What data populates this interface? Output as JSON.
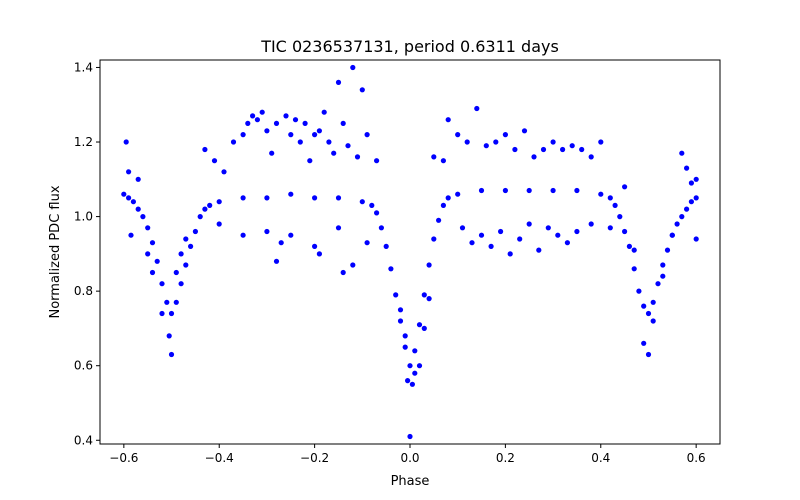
{
  "chart_data": {
    "type": "scatter",
    "title": "TIC 0236537131, period 0.6311 days",
    "xlabel": "Phase",
    "ylabel": "Normalized PDC flux",
    "xlim": [
      -0.65,
      0.65
    ],
    "ylim": [
      0.39,
      1.42
    ],
    "xticks": [
      -0.6,
      -0.4,
      -0.2,
      0.0,
      0.2,
      0.4,
      0.6
    ],
    "xtick_labels": [
      "−0.6",
      "−0.4",
      "−0.2",
      "0.0",
      "0.2",
      "0.4",
      "0.6"
    ],
    "yticks": [
      0.4,
      0.6,
      0.8,
      1.0,
      1.2,
      1.4
    ],
    "ytick_labels": [
      "0.4",
      "0.6",
      "0.8",
      "1.0",
      "1.2",
      "1.4"
    ],
    "grid": false,
    "marker_color": "#0000ff",
    "series": [
      {
        "points": [
          [
            -0.6,
            1.06
          ],
          [
            -0.59,
            1.05
          ],
          [
            -0.58,
            1.04
          ],
          [
            -0.57,
            1.02
          ],
          [
            -0.56,
            1.0
          ],
          [
            -0.55,
            0.97
          ],
          [
            -0.54,
            0.93
          ],
          [
            -0.53,
            0.88
          ],
          [
            -0.52,
            0.82
          ],
          [
            -0.51,
            0.77
          ],
          [
            -0.5,
            0.74
          ],
          [
            -0.49,
            0.77
          ],
          [
            -0.48,
            0.82
          ],
          [
            -0.47,
            0.87
          ],
          [
            -0.46,
            0.92
          ],
          [
            -0.45,
            0.96
          ],
          [
            -0.44,
            1.0
          ],
          [
            -0.43,
            1.02
          ],
          [
            -0.42,
            1.03
          ],
          [
            -0.4,
            1.04
          ],
          [
            -0.35,
            1.05
          ],
          [
            -0.3,
            1.05
          ],
          [
            -0.25,
            1.06
          ],
          [
            -0.2,
            1.05
          ],
          [
            -0.15,
            1.05
          ],
          [
            -0.1,
            1.04
          ],
          [
            -0.08,
            1.03
          ],
          [
            -0.07,
            1.01
          ],
          [
            -0.06,
            0.97
          ],
          [
            -0.05,
            0.92
          ],
          [
            -0.04,
            0.86
          ],
          [
            -0.03,
            0.79
          ],
          [
            -0.02,
            0.72
          ],
          [
            -0.01,
            0.65
          ],
          [
            0.0,
            0.6
          ],
          [
            0.01,
            0.64
          ],
          [
            0.02,
            0.71
          ],
          [
            0.03,
            0.79
          ],
          [
            0.04,
            0.87
          ],
          [
            0.05,
            0.94
          ],
          [
            0.06,
            0.99
          ],
          [
            0.07,
            1.03
          ],
          [
            0.08,
            1.05
          ],
          [
            0.1,
            1.06
          ],
          [
            0.15,
            1.07
          ],
          [
            0.2,
            1.07
          ],
          [
            0.25,
            1.07
          ],
          [
            0.3,
            1.07
          ],
          [
            0.35,
            1.07
          ],
          [
            0.4,
            1.06
          ],
          [
            0.42,
            1.05
          ],
          [
            0.43,
            1.03
          ],
          [
            0.44,
            1.0
          ],
          [
            0.45,
            0.96
          ],
          [
            0.46,
            0.92
          ],
          [
            0.47,
            0.86
          ],
          [
            0.48,
            0.8
          ],
          [
            0.49,
            0.76
          ],
          [
            0.5,
            0.74
          ],
          [
            0.51,
            0.77
          ],
          [
            0.52,
            0.82
          ],
          [
            0.53,
            0.87
          ],
          [
            0.54,
            0.91
          ],
          [
            0.55,
            0.95
          ],
          [
            0.56,
            0.98
          ],
          [
            0.57,
            1.0
          ],
          [
            0.58,
            1.02
          ],
          [
            0.59,
            1.04
          ],
          [
            0.6,
            1.05
          ],
          [
            -0.595,
            1.2
          ],
          [
            -0.59,
            1.12
          ],
          [
            -0.585,
            0.95
          ],
          [
            -0.57,
            1.1
          ],
          [
            -0.55,
            0.9
          ],
          [
            -0.54,
            0.85
          ],
          [
            -0.52,
            0.74
          ],
          [
            -0.505,
            0.68
          ],
          [
            -0.5,
            0.63
          ],
          [
            -0.49,
            0.85
          ],
          [
            -0.48,
            0.9
          ],
          [
            -0.47,
            0.94
          ],
          [
            -0.43,
            1.18
          ],
          [
            -0.41,
            1.15
          ],
          [
            -0.39,
            1.12
          ],
          [
            -0.37,
            1.2
          ],
          [
            -0.35,
            1.22
          ],
          [
            -0.34,
            1.25
          ],
          [
            -0.33,
            1.27
          ],
          [
            -0.32,
            1.26
          ],
          [
            -0.31,
            1.28
          ],
          [
            -0.3,
            1.23
          ],
          [
            -0.29,
            1.17
          ],
          [
            -0.28,
            1.25
          ],
          [
            -0.26,
            1.27
          ],
          [
            -0.25,
            1.22
          ],
          [
            -0.24,
            1.26
          ],
          [
            -0.23,
            1.2
          ],
          [
            -0.22,
            1.25
          ],
          [
            -0.21,
            1.15
          ],
          [
            -0.2,
            1.22
          ],
          [
            -0.19,
            1.23
          ],
          [
            -0.18,
            1.28
          ],
          [
            -0.17,
            1.2
          ],
          [
            -0.16,
            1.17
          ],
          [
            -0.15,
            1.36
          ],
          [
            -0.14,
            1.25
          ],
          [
            -0.13,
            1.19
          ],
          [
            -0.12,
            1.4
          ],
          [
            -0.11,
            1.16
          ],
          [
            -0.1,
            1.34
          ],
          [
            -0.09,
            1.22
          ],
          [
            -0.07,
            1.15
          ],
          [
            -0.3,
            0.96
          ],
          [
            -0.28,
            0.88
          ],
          [
            -0.25,
            0.95
          ],
          [
            -0.2,
            0.92
          ],
          [
            -0.15,
            0.97
          ],
          [
            -0.12,
            0.87
          ],
          [
            -0.09,
            0.93
          ],
          [
            -0.4,
            0.98
          ],
          [
            -0.35,
            0.95
          ],
          [
            -0.19,
            0.9
          ],
          [
            -0.14,
            0.85
          ],
          [
            -0.27,
            0.93
          ],
          [
            -0.02,
            0.75
          ],
          [
            -0.01,
            0.68
          ],
          [
            -0.005,
            0.56
          ],
          [
            0.0,
            0.41
          ],
          [
            0.005,
            0.55
          ],
          [
            0.01,
            0.58
          ],
          [
            0.02,
            0.6
          ],
          [
            0.03,
            0.7
          ],
          [
            0.04,
            0.78
          ],
          [
            0.05,
            1.16
          ],
          [
            0.07,
            1.15
          ],
          [
            0.08,
            1.26
          ],
          [
            0.1,
            1.22
          ],
          [
            0.12,
            1.2
          ],
          [
            0.14,
            1.29
          ],
          [
            0.16,
            1.19
          ],
          [
            0.18,
            1.2
          ],
          [
            0.2,
            1.22
          ],
          [
            0.22,
            1.18
          ],
          [
            0.24,
            1.23
          ],
          [
            0.26,
            1.16
          ],
          [
            0.28,
            1.18
          ],
          [
            0.3,
            1.2
          ],
          [
            0.32,
            1.18
          ],
          [
            0.34,
            1.19
          ],
          [
            0.36,
            1.18
          ],
          [
            0.38,
            1.16
          ],
          [
            0.4,
            1.2
          ],
          [
            0.11,
            0.97
          ],
          [
            0.13,
            0.93
          ],
          [
            0.15,
            0.95
          ],
          [
            0.17,
            0.92
          ],
          [
            0.19,
            0.96
          ],
          [
            0.21,
            0.9
          ],
          [
            0.23,
            0.94
          ],
          [
            0.25,
            0.98
          ],
          [
            0.27,
            0.91
          ],
          [
            0.29,
            0.97
          ],
          [
            0.31,
            0.95
          ],
          [
            0.33,
            0.93
          ],
          [
            0.35,
            0.96
          ],
          [
            0.38,
            0.98
          ],
          [
            0.42,
            0.97
          ],
          [
            0.45,
            1.08
          ],
          [
            0.47,
            0.91
          ],
          [
            0.49,
            0.66
          ],
          [
            0.5,
            0.63
          ],
          [
            0.51,
            0.72
          ],
          [
            0.53,
            0.84
          ],
          [
            0.55,
            0.95
          ],
          [
            0.57,
            1.17
          ],
          [
            0.58,
            1.13
          ],
          [
            0.59,
            1.09
          ],
          [
            0.6,
            0.94
          ],
          [
            0.6,
            1.1
          ]
        ]
      }
    ]
  }
}
